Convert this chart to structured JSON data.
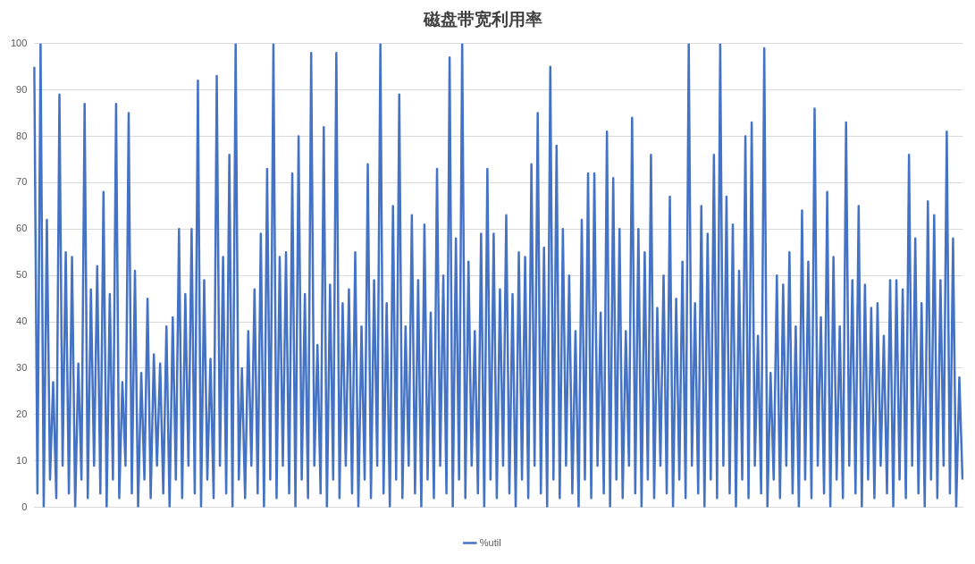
{
  "chart_data": {
    "type": "line",
    "title": "磁盘带宽利用率",
    "legend": "bottom",
    "grid": "y",
    "marker": "none",
    "line_style": "solid",
    "ylim": [
      0,
      100
    ],
    "yticks": [
      0,
      10,
      20,
      30,
      40,
      50,
      60,
      70,
      80,
      90,
      100
    ],
    "categories": [
      null,
      null,
      null,
      null,
      null,
      null,
      null,
      null,
      null,
      null,
      null,
      null,
      null,
      null,
      null,
      null,
      null,
      null,
      null,
      null,
      null,
      null,
      null,
      null,
      null,
      null,
      null,
      null,
      null,
      null,
      null,
      null,
      null,
      null,
      null,
      null,
      null,
      null,
      null,
      null,
      null,
      null,
      null,
      null,
      null,
      null,
      null,
      null,
      null,
      null,
      null,
      null,
      null,
      null,
      null,
      null,
      null,
      null,
      null,
      null,
      null,
      null,
      null,
      null,
      null,
      null,
      null,
      null,
      null,
      null,
      null,
      null,
      null,
      null,
      null,
      null,
      null,
      null,
      null,
      null,
      null,
      null,
      null,
      null,
      null,
      null,
      null,
      null,
      null,
      null,
      null,
      null,
      null,
      null,
      null,
      null,
      null,
      null,
      null,
      null,
      null,
      null,
      null,
      null,
      null,
      null,
      null,
      null,
      null,
      null,
      null,
      null,
      null,
      null,
      null,
      null,
      null,
      null,
      null,
      null,
      null,
      null,
      null,
      null,
      null,
      null,
      null,
      null,
      null,
      null,
      null,
      null,
      null,
      null,
      null,
      null,
      null,
      null,
      null,
      null,
      null,
      null,
      null,
      null,
      null,
      null,
      null,
      null,
      null,
      null,
      null,
      null,
      null,
      null,
      null,
      null,
      null,
      null,
      null,
      null,
      null,
      null,
      null,
      null,
      null,
      null,
      null,
      null,
      null,
      null,
      null,
      null,
      null,
      null,
      null,
      null,
      null,
      null,
      null,
      null,
      null,
      null,
      null,
      null,
      null,
      null,
      null,
      null,
      null,
      null,
      null,
      null,
      null,
      null,
      null,
      null,
      null,
      null,
      null,
      null,
      null,
      null,
      null,
      null,
      null,
      null,
      null,
      null,
      null,
      null,
      null,
      null,
      null,
      null,
      null,
      null,
      null,
      null,
      null,
      null,
      null,
      null,
      null,
      null,
      null,
      null,
      null,
      null,
      null,
      null,
      null,
      null,
      null,
      null,
      null,
      null,
      null,
      null,
      null,
      null,
      null,
      null,
      null,
      null,
      null,
      null,
      null,
      null,
      null,
      null,
      null,
      null,
      null,
      null,
      null,
      null,
      null,
      null,
      null,
      null,
      null,
      null,
      null,
      null,
      null,
      null,
      null,
      null,
      null,
      null,
      null,
      null,
      null,
      null,
      null,
      null,
      null,
      null,
      null,
      null,
      null,
      null,
      null,
      null,
      null,
      null,
      null,
      null,
      null,
      null,
      null,
      null,
      null,
      null,
      null,
      null
    ],
    "series": [
      {
        "name": "%util",
        "color": "#4472c4",
        "values": [
          95,
          3,
          100,
          0,
          62,
          6,
          27,
          2,
          89,
          9,
          55,
          3,
          54,
          0,
          31,
          6,
          87,
          2,
          47,
          9,
          52,
          3,
          68,
          0,
          46,
          6,
          87,
          2,
          27,
          9,
          85,
          3,
          51,
          0,
          29,
          6,
          45,
          2,
          33,
          9,
          31,
          3,
          39,
          0,
          41,
          6,
          60,
          2,
          46,
          9,
          60,
          3,
          92,
          0,
          49,
          6,
          32,
          2,
          93,
          9,
          54,
          3,
          76,
          0,
          100,
          6,
          30,
          2,
          38,
          9,
          47,
          3,
          59,
          0,
          73,
          6,
          100,
          2,
          54,
          9,
          55,
          3,
          72,
          0,
          80,
          6,
          46,
          2,
          98,
          9,
          35,
          3,
          82,
          0,
          48,
          6,
          98,
          2,
          44,
          9,
          47,
          3,
          55,
          0,
          39,
          6,
          74,
          2,
          49,
          9,
          100,
          3,
          44,
          0,
          65,
          6,
          89,
          2,
          39,
          9,
          63,
          3,
          49,
          0,
          61,
          6,
          42,
          2,
          73,
          9,
          50,
          3,
          97,
          0,
          58,
          6,
          100,
          2,
          53,
          9,
          38,
          3,
          59,
          0,
          73,
          6,
          59,
          2,
          47,
          9,
          63,
          3,
          46,
          0,
          55,
          6,
          54,
          2,
          74,
          9,
          85,
          3,
          56,
          0,
          95,
          6,
          78,
          2,
          60,
          9,
          50,
          3,
          38,
          0,
          62,
          6,
          72,
          2,
          72,
          9,
          42,
          3,
          81,
          0,
          71,
          6,
          60,
          2,
          38,
          9,
          84,
          3,
          60,
          0,
          55,
          6,
          76,
          2,
          43,
          9,
          50,
          3,
          67,
          0,
          45,
          6,
          53,
          2,
          100,
          9,
          44,
          3,
          65,
          0,
          59,
          6,
          76,
          2,
          100,
          9,
          67,
          3,
          61,
          0,
          51,
          6,
          80,
          2,
          83,
          9,
          37,
          3,
          99,
          0,
          29,
          6,
          50,
          2,
          48,
          9,
          55,
          3,
          39,
          0,
          64,
          6,
          53,
          2,
          86,
          9,
          41,
          3,
          68,
          0,
          54,
          6,
          39,
          2,
          83,
          9,
          49,
          3,
          65,
          0,
          48,
          6,
          43,
          2,
          44,
          9,
          37,
          3,
          49,
          0,
          49,
          6,
          47,
          2,
          76,
          9,
          58,
          3,
          44,
          0,
          66,
          6,
          63,
          2,
          49,
          9,
          81,
          3,
          58,
          0,
          28,
          6
        ]
      }
    ]
  }
}
